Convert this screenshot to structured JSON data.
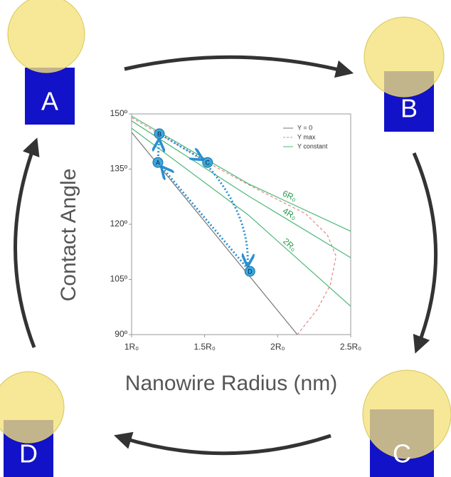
{
  "chart_data": {
    "type": "line",
    "x_label": "Nanowire Radius (nm)",
    "y_label": "Contact Angle",
    "xlim": [
      1,
      2.5
    ],
    "ylim": [
      90,
      150
    ],
    "xticks": [
      {
        "value": 1,
        "label": "1R₀"
      },
      {
        "value": 1.5,
        "label": "1.5R₀"
      },
      {
        "value": 2,
        "label": "2R₀"
      },
      {
        "value": 2.5,
        "label": "2.5R₀"
      }
    ],
    "yticks": [
      {
        "value": 90,
        "label": "90º"
      },
      {
        "value": 105,
        "label": "105º"
      },
      {
        "value": 120,
        "label": "120º"
      },
      {
        "value": 135,
        "label": "135º"
      },
      {
        "value": 150,
        "label": "150º"
      }
    ],
    "legend": "top-right",
    "series": [
      {
        "name": "Y = 0",
        "color": "#777777",
        "dashed": false,
        "x": [
          1,
          2.135
        ],
        "values": [
          145,
          90
        ]
      },
      {
        "name": "Y max",
        "color": "#e08a8a",
        "dashed": true,
        "x": [
          1,
          1.52,
          1.85,
          2.19,
          2.34,
          2.4,
          2.36,
          2.27,
          2.135
        ],
        "values": [
          149,
          136.8,
          129.7,
          122.9,
          117.1,
          111.3,
          103.5,
          96.8,
          90
        ]
      },
      {
        "name": "Y constant",
        "color": "#4cb87a",
        "dashed": false,
        "curves": [
          {
            "label": "6R₀",
            "x": [
              1,
              1.8,
              2.5
            ],
            "values": [
              149.4,
              131,
              118.1
            ]
          },
          {
            "label": "4R₀",
            "x": [
              1,
              1.8,
              2.5
            ],
            "values": [
              148.1,
              127.7,
              110.9
            ]
          },
          {
            "label": "2R₀",
            "x": [
              1,
              1.8,
              2.5
            ],
            "values": [
              146.1,
              122.5,
              97.7
            ]
          }
        ]
      }
    ],
    "points": [
      {
        "label": "A",
        "x": 1.18,
        "y": 136.8
      },
      {
        "label": "B",
        "x": 1.19,
        "y": 144.6
      },
      {
        "label": "C",
        "x": 1.52,
        "y": 136.8
      },
      {
        "label": "D",
        "x": 1.81,
        "y": 107.2
      }
    ],
    "illustrations": [
      "A",
      "B",
      "C",
      "D"
    ]
  }
}
